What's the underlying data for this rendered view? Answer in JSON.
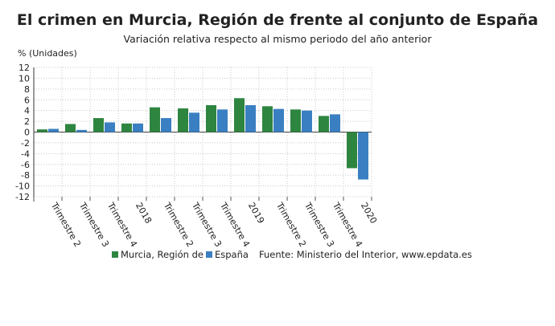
{
  "chart_data": {
    "type": "bar",
    "title": "El crimen en Murcia, Región de frente al conjunto de España",
    "subtitle": "Variación relativa respecto al mismo periodo del año anterior",
    "ylabel": "% (Unidades)",
    "ylim": [
      -12,
      12
    ],
    "yticks": [
      12,
      10,
      8,
      6,
      4,
      2,
      0,
      -2,
      -4,
      -6,
      -8,
      -10,
      -12
    ],
    "grid": true,
    "categories": [
      "Trimestre 2",
      "Trimestre 3",
      "Trimestre 4",
      "2018",
      "Trimestre 2",
      "Trimestre 3",
      "Trimestre 4",
      "2019",
      "Trimestre 2",
      "Trimestre 3",
      "Trimestre 4",
      "2020"
    ],
    "series": [
      {
        "name": "Murcia, Región de",
        "color": "#2e8540",
        "values": [
          0.5,
          1.5,
          2.6,
          1.6,
          4.6,
          4.4,
          5.0,
          6.3,
          4.8,
          4.2,
          3.0,
          -6.7
        ]
      },
      {
        "name": "España",
        "color": "#3a7fc1",
        "values": [
          0.6,
          0.4,
          1.8,
          1.6,
          2.6,
          3.6,
          4.2,
          5.0,
          4.3,
          4.0,
          3.3,
          -8.8
        ]
      }
    ],
    "legend_placement": "bottom",
    "source": "Fuente: Ministerio del Interior, www.epdata.es"
  }
}
